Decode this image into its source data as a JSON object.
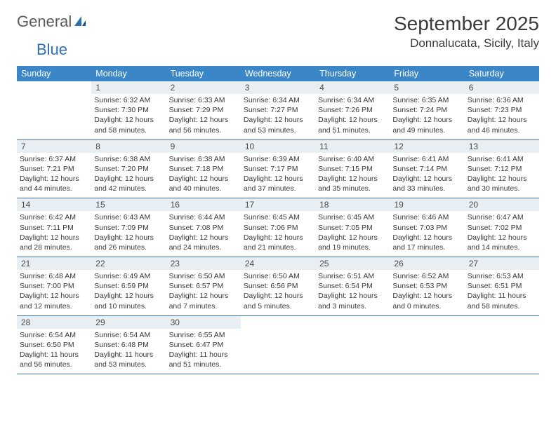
{
  "logo": {
    "word1": "General",
    "word2": "Blue"
  },
  "header": {
    "title": "September 2025",
    "location": "Donnalucata, Sicily, Italy"
  },
  "colors": {
    "header_bg": "#3b86c6",
    "header_text": "#ffffff",
    "daynum_bg": "#e9eef2",
    "row_border": "#3b6fa0",
    "logo_blue": "#2f6fb0",
    "text": "#3a3a3a"
  },
  "days_of_week": [
    "Sunday",
    "Monday",
    "Tuesday",
    "Wednesday",
    "Thursday",
    "Friday",
    "Saturday"
  ],
  "weeks": [
    [
      {
        "n": "",
        "lines": [
          "",
          "",
          "",
          ""
        ]
      },
      {
        "n": "1",
        "lines": [
          "Sunrise: 6:32 AM",
          "Sunset: 7:30 PM",
          "Daylight: 12 hours",
          "and 58 minutes."
        ]
      },
      {
        "n": "2",
        "lines": [
          "Sunrise: 6:33 AM",
          "Sunset: 7:29 PM",
          "Daylight: 12 hours",
          "and 56 minutes."
        ]
      },
      {
        "n": "3",
        "lines": [
          "Sunrise: 6:34 AM",
          "Sunset: 7:27 PM",
          "Daylight: 12 hours",
          "and 53 minutes."
        ]
      },
      {
        "n": "4",
        "lines": [
          "Sunrise: 6:34 AM",
          "Sunset: 7:26 PM",
          "Daylight: 12 hours",
          "and 51 minutes."
        ]
      },
      {
        "n": "5",
        "lines": [
          "Sunrise: 6:35 AM",
          "Sunset: 7:24 PM",
          "Daylight: 12 hours",
          "and 49 minutes."
        ]
      },
      {
        "n": "6",
        "lines": [
          "Sunrise: 6:36 AM",
          "Sunset: 7:23 PM",
          "Daylight: 12 hours",
          "and 46 minutes."
        ]
      }
    ],
    [
      {
        "n": "7",
        "lines": [
          "Sunrise: 6:37 AM",
          "Sunset: 7:21 PM",
          "Daylight: 12 hours",
          "and 44 minutes."
        ]
      },
      {
        "n": "8",
        "lines": [
          "Sunrise: 6:38 AM",
          "Sunset: 7:20 PM",
          "Daylight: 12 hours",
          "and 42 minutes."
        ]
      },
      {
        "n": "9",
        "lines": [
          "Sunrise: 6:38 AM",
          "Sunset: 7:18 PM",
          "Daylight: 12 hours",
          "and 40 minutes."
        ]
      },
      {
        "n": "10",
        "lines": [
          "Sunrise: 6:39 AM",
          "Sunset: 7:17 PM",
          "Daylight: 12 hours",
          "and 37 minutes."
        ]
      },
      {
        "n": "11",
        "lines": [
          "Sunrise: 6:40 AM",
          "Sunset: 7:15 PM",
          "Daylight: 12 hours",
          "and 35 minutes."
        ]
      },
      {
        "n": "12",
        "lines": [
          "Sunrise: 6:41 AM",
          "Sunset: 7:14 PM",
          "Daylight: 12 hours",
          "and 33 minutes."
        ]
      },
      {
        "n": "13",
        "lines": [
          "Sunrise: 6:41 AM",
          "Sunset: 7:12 PM",
          "Daylight: 12 hours",
          "and 30 minutes."
        ]
      }
    ],
    [
      {
        "n": "14",
        "lines": [
          "Sunrise: 6:42 AM",
          "Sunset: 7:11 PM",
          "Daylight: 12 hours",
          "and 28 minutes."
        ]
      },
      {
        "n": "15",
        "lines": [
          "Sunrise: 6:43 AM",
          "Sunset: 7:09 PM",
          "Daylight: 12 hours",
          "and 26 minutes."
        ]
      },
      {
        "n": "16",
        "lines": [
          "Sunrise: 6:44 AM",
          "Sunset: 7:08 PM",
          "Daylight: 12 hours",
          "and 24 minutes."
        ]
      },
      {
        "n": "17",
        "lines": [
          "Sunrise: 6:45 AM",
          "Sunset: 7:06 PM",
          "Daylight: 12 hours",
          "and 21 minutes."
        ]
      },
      {
        "n": "18",
        "lines": [
          "Sunrise: 6:45 AM",
          "Sunset: 7:05 PM",
          "Daylight: 12 hours",
          "and 19 minutes."
        ]
      },
      {
        "n": "19",
        "lines": [
          "Sunrise: 6:46 AM",
          "Sunset: 7:03 PM",
          "Daylight: 12 hours",
          "and 17 minutes."
        ]
      },
      {
        "n": "20",
        "lines": [
          "Sunrise: 6:47 AM",
          "Sunset: 7:02 PM",
          "Daylight: 12 hours",
          "and 14 minutes."
        ]
      }
    ],
    [
      {
        "n": "21",
        "lines": [
          "Sunrise: 6:48 AM",
          "Sunset: 7:00 PM",
          "Daylight: 12 hours",
          "and 12 minutes."
        ]
      },
      {
        "n": "22",
        "lines": [
          "Sunrise: 6:49 AM",
          "Sunset: 6:59 PM",
          "Daylight: 12 hours",
          "and 10 minutes."
        ]
      },
      {
        "n": "23",
        "lines": [
          "Sunrise: 6:50 AM",
          "Sunset: 6:57 PM",
          "Daylight: 12 hours",
          "and 7 minutes."
        ]
      },
      {
        "n": "24",
        "lines": [
          "Sunrise: 6:50 AM",
          "Sunset: 6:56 PM",
          "Daylight: 12 hours",
          "and 5 minutes."
        ]
      },
      {
        "n": "25",
        "lines": [
          "Sunrise: 6:51 AM",
          "Sunset: 6:54 PM",
          "Daylight: 12 hours",
          "and 3 minutes."
        ]
      },
      {
        "n": "26",
        "lines": [
          "Sunrise: 6:52 AM",
          "Sunset: 6:53 PM",
          "Daylight: 12 hours",
          "and 0 minutes."
        ]
      },
      {
        "n": "27",
        "lines": [
          "Sunrise: 6:53 AM",
          "Sunset: 6:51 PM",
          "Daylight: 11 hours",
          "and 58 minutes."
        ]
      }
    ],
    [
      {
        "n": "28",
        "lines": [
          "Sunrise: 6:54 AM",
          "Sunset: 6:50 PM",
          "Daylight: 11 hours",
          "and 56 minutes."
        ]
      },
      {
        "n": "29",
        "lines": [
          "Sunrise: 6:54 AM",
          "Sunset: 6:48 PM",
          "Daylight: 11 hours",
          "and 53 minutes."
        ]
      },
      {
        "n": "30",
        "lines": [
          "Sunrise: 6:55 AM",
          "Sunset: 6:47 PM",
          "Daylight: 11 hours",
          "and 51 minutes."
        ]
      },
      {
        "n": "",
        "lines": [
          "",
          "",
          "",
          ""
        ]
      },
      {
        "n": "",
        "lines": [
          "",
          "",
          "",
          ""
        ]
      },
      {
        "n": "",
        "lines": [
          "",
          "",
          "",
          ""
        ]
      },
      {
        "n": "",
        "lines": [
          "",
          "",
          "",
          ""
        ]
      }
    ]
  ]
}
